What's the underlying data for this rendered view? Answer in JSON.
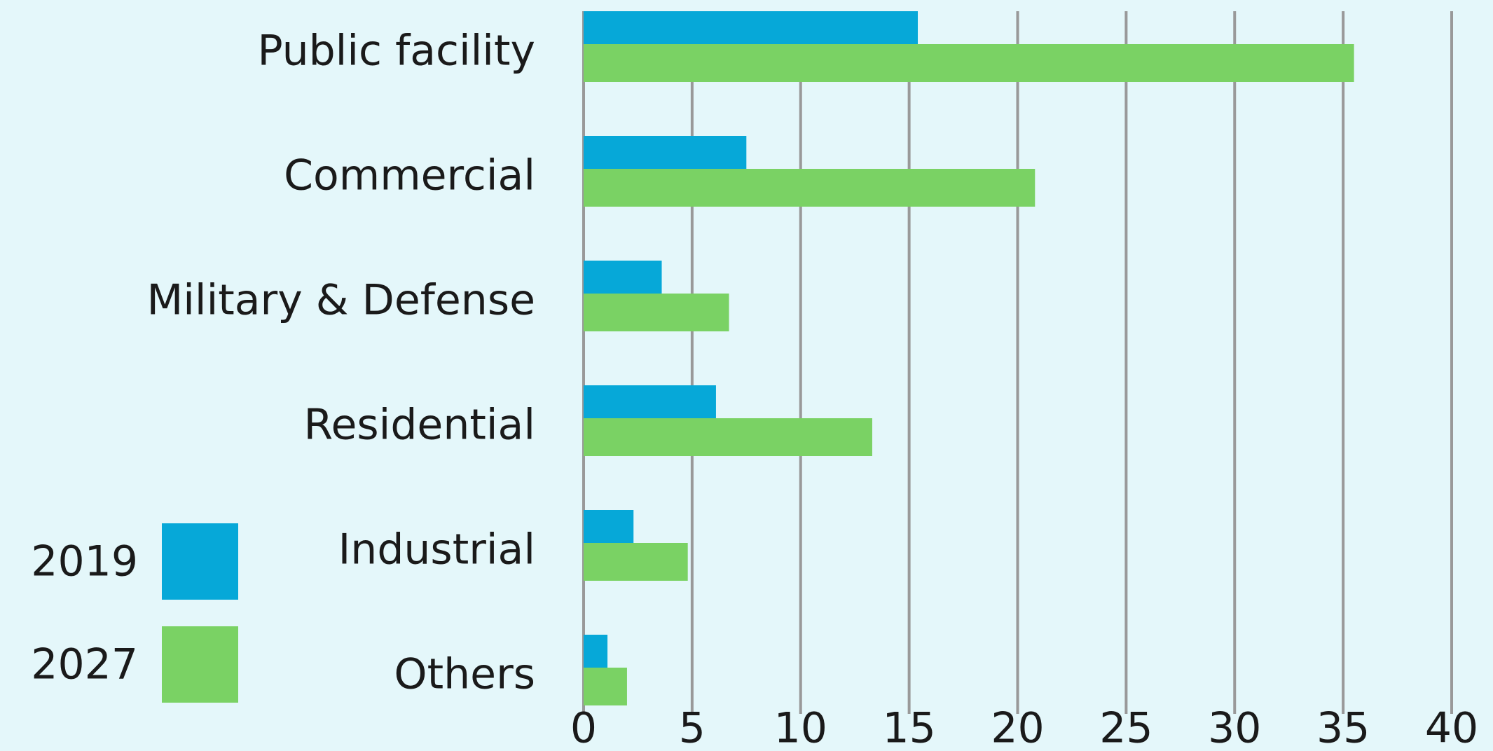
{
  "chart_data": {
    "type": "bar",
    "orientation": "horizontal",
    "categories": [
      "Public facility",
      "Commercial",
      "Military & Defense",
      "Residential",
      "Industrial",
      "Others"
    ],
    "series": [
      {
        "name": "2019",
        "color": "#06a8d8",
        "values": [
          15.4,
          7.5,
          3.6,
          6.1,
          2.3,
          1.1
        ]
      },
      {
        "name": "2027",
        "color": "#7ad264",
        "values": [
          35.5,
          20.8,
          6.7,
          13.3,
          4.8,
          2.0
        ]
      }
    ],
    "xlim": [
      0,
      40
    ],
    "xticks": [
      0,
      5,
      10,
      15,
      20,
      25,
      30,
      35,
      40
    ],
    "grid": true,
    "legend": "lower left"
  }
}
